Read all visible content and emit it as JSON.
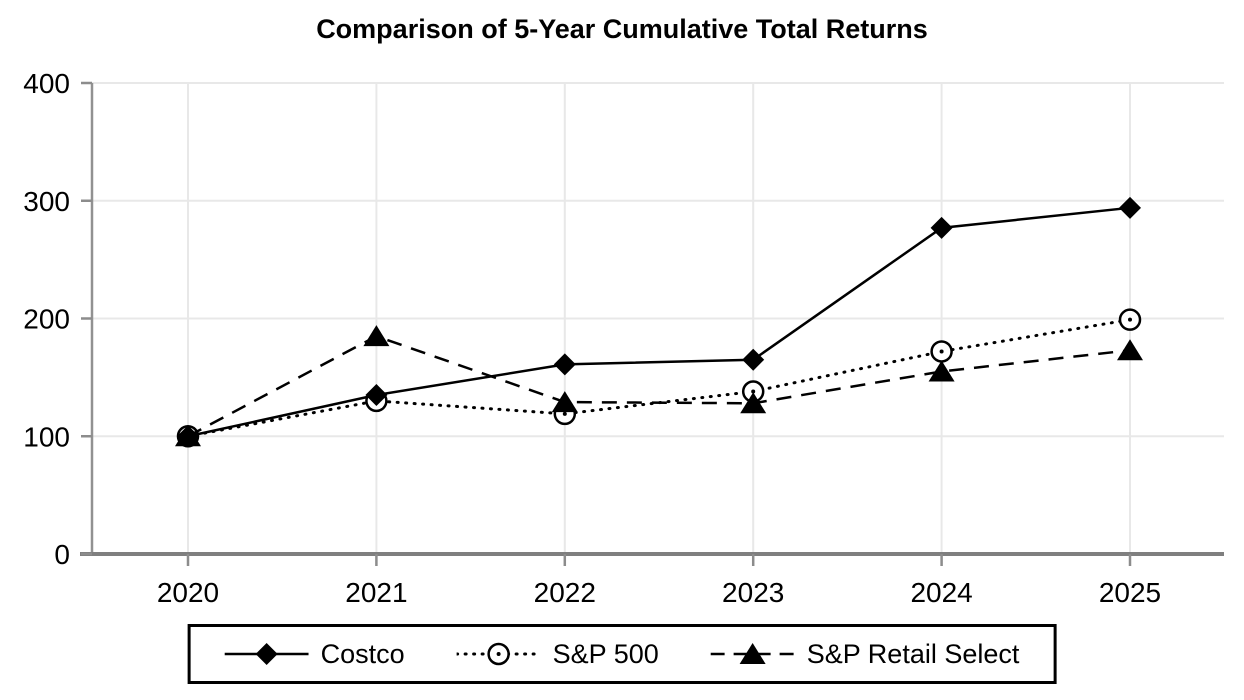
{
  "chart_data": {
    "type": "line",
    "title": "Comparison of 5-Year Cumulative Total Returns",
    "x_tick_labels": [
      "2020",
      "2021",
      "2022",
      "2023",
      "2024",
      "2025"
    ],
    "y_tick_labels": [
      "0",
      "100",
      "200",
      "300",
      "400"
    ],
    "y_ticks": [
      0,
      100,
      200,
      300,
      400
    ],
    "ylim": [
      0,
      400
    ],
    "grid": true,
    "legend_position": "bottom",
    "series": [
      {
        "name": "Costco",
        "line_style": "solid",
        "marker": "filled-diamond",
        "color": "#000000",
        "values": [
          100,
          135,
          161,
          165,
          277,
          294
        ]
      },
      {
        "name": "S&P 500",
        "line_style": "dotted",
        "marker": "open-circle-dot",
        "color": "#000000",
        "values": [
          100,
          130,
          119,
          138,
          172,
          199
        ]
      },
      {
        "name": "S&P Retail Select",
        "line_style": "dashed",
        "marker": "filled-triangle",
        "color": "#000000",
        "values": [
          100,
          185,
          129,
          128,
          155,
          173
        ]
      }
    ],
    "colors": {
      "series": "#000000",
      "gridline": "#e8e8e8",
      "axis_y": "#919191",
      "axis_x": "#7f7f7f",
      "tick": "#8c8c8c",
      "label": "#000000",
      "background": "#ffffff"
    }
  }
}
